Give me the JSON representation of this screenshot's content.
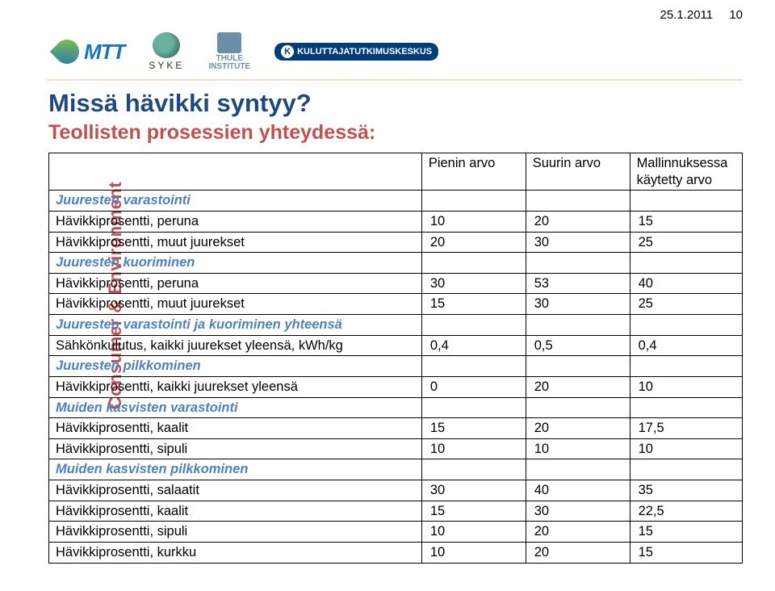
{
  "meta": {
    "date": "25.1.2011",
    "pageNumber": "10",
    "verticalLabel": "Consumer & Environment"
  },
  "logos": {
    "mtt": "MTT",
    "syke": "SYKE",
    "thule_line1": "THULE",
    "thule_line2": "INSTITUTE",
    "ktk": "KULUTTAJATUTKIMUSKESKUS"
  },
  "title": "Missä hävikki syntyy?",
  "subtitle": "Teollisten prosessien yhteydessä:",
  "table": {
    "headers": {
      "blank": "",
      "c1": "Pienin arvo",
      "c2": "Suurin arvo",
      "c3": "Mallinnuksessa käytetty arvo"
    },
    "sections": [
      {
        "title": "Juuresten varastointi",
        "rows": [
          {
            "label": "Hävikkiprosentti, peruna",
            "v": [
              "10",
              "20",
              "15"
            ]
          },
          {
            "label": "Hävikkiprosentti, muut juurekset",
            "v": [
              "20",
              "30",
              "25"
            ]
          }
        ]
      },
      {
        "title": "Juuresten kuoriminen",
        "rows": [
          {
            "label": "Hävikkiprosentti, peruna",
            "v": [
              "30",
              "53",
              "40"
            ]
          },
          {
            "label": "Hävikkiprosentti, muut juurekset",
            "v": [
              "15",
              "30",
              "25"
            ]
          }
        ]
      },
      {
        "title": "Juuresten varastointi ja kuoriminen yhteensä",
        "rows": [
          {
            "label": "Sähkönkulutus, kaikki juurekset yleensä, kWh/kg",
            "v": [
              "0,4",
              "0,5",
              "0,4"
            ]
          }
        ]
      },
      {
        "title": "Juuresten pilkkominen",
        "rows": [
          {
            "label": "Hävikkiprosentti, kaikki juurekset yleensä",
            "v": [
              "0",
              "20",
              "10"
            ]
          }
        ]
      },
      {
        "title": "Muiden kasvisten varastointi",
        "rows": [
          {
            "label": "Hävikkiprosentti, kaalit",
            "v": [
              "15",
              "20",
              "17,5"
            ]
          },
          {
            "label": "Hävikkiprosentti, sipuli",
            "v": [
              "10",
              "10",
              "10"
            ]
          }
        ]
      },
      {
        "title": "Muiden kasvisten pilkkominen",
        "rows": [
          {
            "label": "Hävikkiprosentti, salaatit",
            "v": [
              "30",
              "40",
              "35"
            ]
          },
          {
            "label": "Hävikkiprosentti, kaalit",
            "v": [
              "15",
              "30",
              "22,5"
            ]
          },
          {
            "label": "Hävikkiprosentti, sipuli",
            "v": [
              "10",
              "20",
              "15"
            ]
          },
          {
            "label": "Hävikkiprosentti, kurkku",
            "v": [
              "10",
              "20",
              "15"
            ]
          }
        ]
      }
    ]
  },
  "colors": {
    "titleColor": "#1f497d",
    "subtitleColor": "#c0504d",
    "sectionColor": "#4f81bd",
    "verticalColor": "#c0504d"
  }
}
